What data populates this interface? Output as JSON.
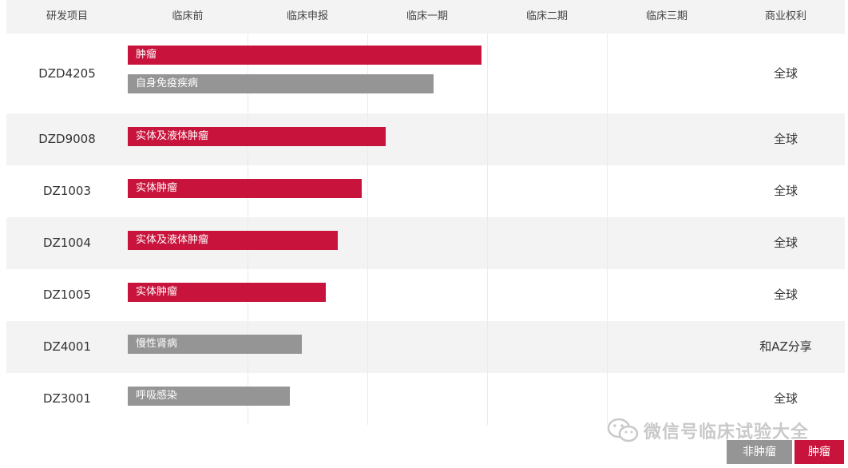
{
  "chart_data": {
    "type": "bar",
    "columns": [
      "研发项目",
      "临床前",
      "临床申报",
      "临床一期",
      "临床二期",
      "临床三期",
      "商业权利"
    ],
    "stages": [
      "临床前",
      "临床申报",
      "临床一期",
      "临床二期",
      "临床三期"
    ],
    "rows": [
      {
        "project": "DZD4205",
        "rights": "全球",
        "bars": [
          {
            "label": "肿瘤",
            "category": "肿瘤",
            "progress": 2.95
          },
          {
            "label": "自身免疫疾病",
            "category": "非肿瘤",
            "progress": 2.55
          }
        ]
      },
      {
        "project": "DZD9008",
        "rights": "全球",
        "bars": [
          {
            "label": "实体及液体肿瘤",
            "category": "肿瘤",
            "progress": 2.15
          }
        ]
      },
      {
        "project": "DZ1003",
        "rights": "全球",
        "bars": [
          {
            "label": "实体肿瘤",
            "category": "肿瘤",
            "progress": 1.95
          }
        ]
      },
      {
        "project": "DZ1004",
        "rights": "全球",
        "bars": [
          {
            "label": "实体及液体肿瘤",
            "category": "肿瘤",
            "progress": 1.75
          }
        ]
      },
      {
        "project": "DZ1005",
        "rights": "全球",
        "bars": [
          {
            "label": "实体肿瘤",
            "category": "肿瘤",
            "progress": 1.65
          }
        ]
      },
      {
        "project": "DZ4001",
        "rights": "和AZ分享",
        "bars": [
          {
            "label": "慢性肾病",
            "category": "非肿瘤",
            "progress": 1.45
          }
        ]
      },
      {
        "project": "DZ3001",
        "rights": "全球",
        "bars": [
          {
            "label": "呼吸感染",
            "category": "非肿瘤",
            "progress": 1.35
          }
        ]
      }
    ],
    "legend": [
      {
        "label": "非肿瘤",
        "color": "#959595"
      },
      {
        "label": "肿瘤",
        "color": "#c8143c"
      }
    ],
    "colors": {
      "肿瘤": "#c8143c",
      "非肿瘤": "#959595"
    }
  },
  "watermark": {
    "text": "微信号临床试验大全",
    "icon": "wechat-icon"
  }
}
